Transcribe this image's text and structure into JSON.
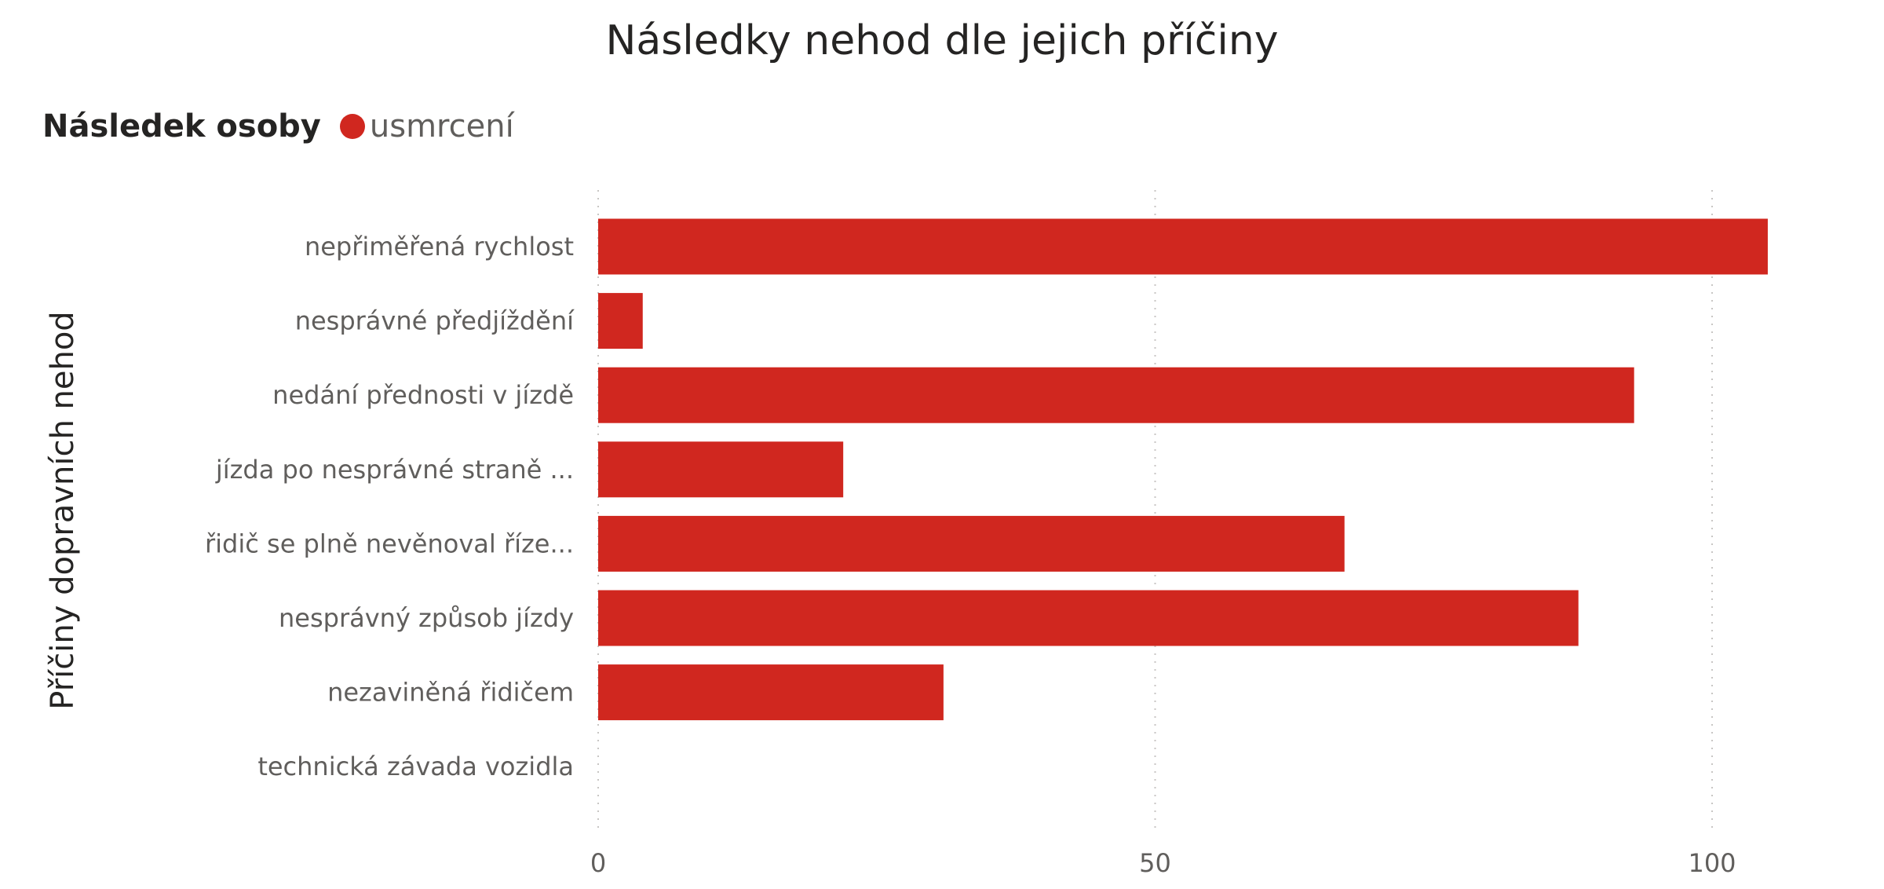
{
  "chart_data": {
    "type": "bar",
    "orientation": "horizontal",
    "title": "Následky nehod dle jejich příčiny",
    "ylabel": "Příčiny dopravních nehod",
    "xlabel": "",
    "legend": {
      "title": "Následek osoby",
      "position": "top-left",
      "entries": [
        "usmrcení"
      ]
    },
    "categories": [
      "nepřiměřená rychlost",
      "nesprávné předjíždění",
      "nedání přednosti v jízdě",
      "jízda po nesprávné straně ...",
      "řidič se plně nevěnoval říze...",
      "nesprávný způsob jízdy",
      "nezaviněná řidičem",
      "technická závada vozidla"
    ],
    "series": [
      {
        "name": "usmrcení",
        "color": "#d0271f",
        "values": [
          105,
          4,
          93,
          22,
          67,
          88,
          31,
          0
        ]
      }
    ],
    "xlim": [
      0,
      110
    ],
    "xticks": [
      "0",
      "50",
      "100"
    ],
    "xtick_values": [
      0,
      50,
      100
    ],
    "grid": "vertical dotted"
  }
}
